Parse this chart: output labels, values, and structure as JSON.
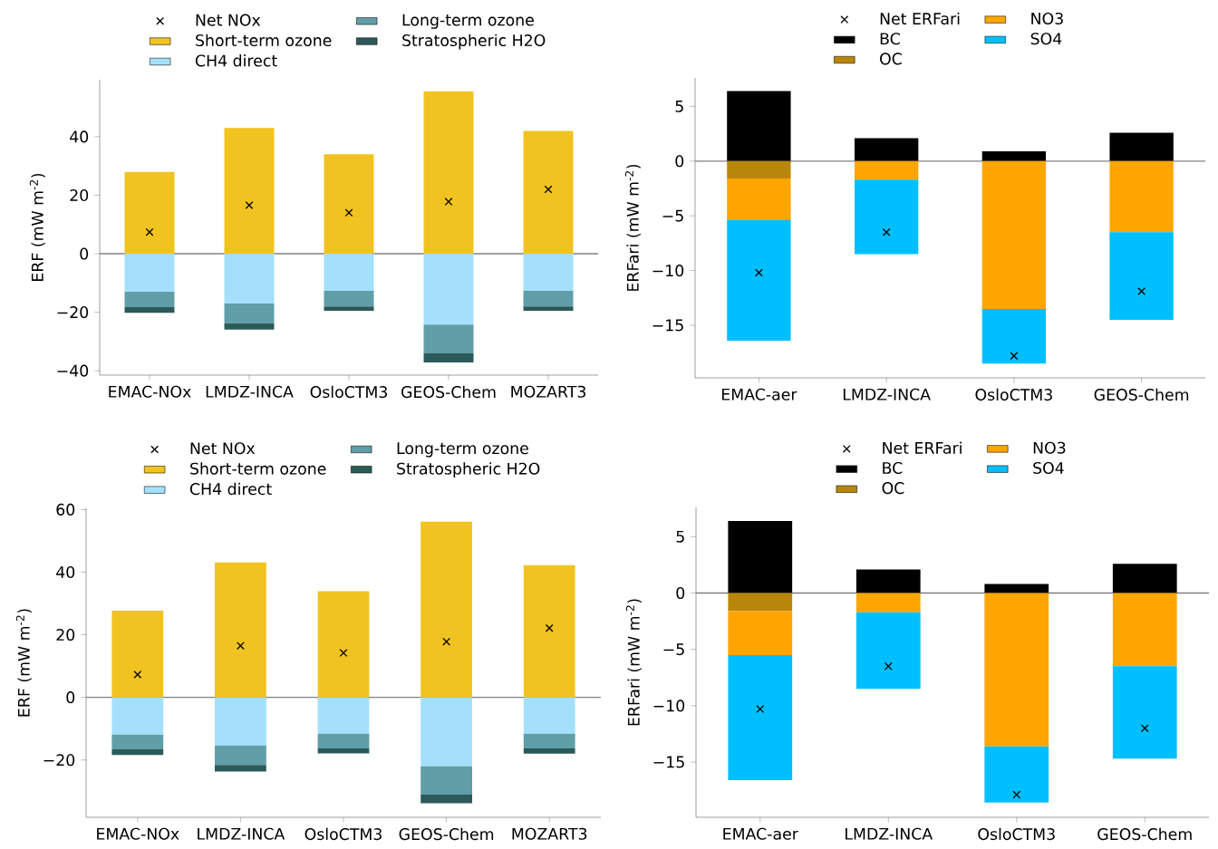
{
  "chart_data": [
    {
      "type": "bar",
      "stacked": true,
      "legend": "top",
      "ylabel": "ERF (mW m$^{-2}$)",
      "categories": [
        "EMAC-NOx",
        "LMDZ-INCA",
        "OsloCTM3",
        "GEOS-Chem",
        "MOZART3"
      ],
      "ylim": [
        -41.5,
        59.5
      ],
      "yticks": [
        {
          "value": -40,
          "label": "−40"
        },
        {
          "value": -20,
          "label": "−20"
        },
        0,
        20,
        40
      ],
      "ref_lines": [
        {
          "axis": "y",
          "value": 0,
          "color": "#808080"
        }
      ],
      "series": [
        {
          "name": "Net NOx",
          "type": "scatter",
          "marker": "cross",
          "color": "#000000",
          "x": [
            "EMAC-NOx",
            "LMDZ-INCA",
            "OsloCTM3",
            "GEOS-Chem",
            "MOZART3"
          ],
          "values": [
            7.4,
            16.6,
            14,
            17.8,
            22
          ]
        },
        {
          "name": "Short-term ozone",
          "color": "#f1c320",
          "values": [
            28,
            43,
            34,
            55.5,
            42
          ]
        },
        {
          "name": "CH4 direct",
          "color": "#a4e0fb",
          "values": [
            -13,
            -17,
            -12.7,
            -24.2,
            -12.7
          ]
        },
        {
          "name": "Long-term ozone",
          "color": "#609ea8",
          "values": [
            -5.3,
            -6.8,
            -5.3,
            -9.9,
            -5.3
          ]
        },
        {
          "name": "Stratospheric H2O",
          "color": "#2c5a58",
          "values": [
            -1.9,
            -2.1,
            -1.5,
            -3.1,
            -1.5
          ]
        }
      ]
    },
    {
      "type": "bar",
      "stacked": true,
      "legend": "top",
      "ylabel": "ERFari (mW m$^{-2}$)",
      "categories": [
        "EMAC-aer",
        "LMDZ-INCA",
        "OsloCTM3",
        "GEOS-Chem"
      ],
      "ylim": [
        -19.8,
        7.6
      ],
      "yticks": [
        {
          "value": -15,
          "label": "−15"
        },
        {
          "value": -10,
          "label": "−10"
        },
        {
          "value": -5,
          "label": "−5"
        },
        0,
        5
      ],
      "ref_lines": [
        {
          "axis": "y",
          "value": 0,
          "color": "#808080"
        }
      ],
      "series": [
        {
          "name": "Net ERFari",
          "type": "scatter",
          "marker": "cross",
          "color": "#000000",
          "x": [
            "EMAC-aer",
            "LMDZ-INCA",
            "OsloCTM3",
            "GEOS-Chem"
          ],
          "values": [
            -10.2,
            -6.5,
            -17.8,
            -11.9
          ]
        },
        {
          "name": "BC",
          "color": "#000000",
          "values": [
            6.4,
            2.1,
            0.9,
            2.6
          ]
        },
        {
          "name": "OC",
          "color": "#b8860b",
          "values": [
            -1.6,
            0,
            0,
            0
          ]
        },
        {
          "name": "NO3",
          "color": "#ffa500",
          "values": [
            -3.8,
            -1.7,
            -13.5,
            -6.5
          ]
        },
        {
          "name": "SO4",
          "color": "#00bfff",
          "values": [
            -11,
            -6.8,
            -5,
            -8
          ]
        }
      ]
    },
    {
      "type": "bar",
      "stacked": true,
      "legend": "top",
      "ylabel": "ERF (mW m$^{-2}$)",
      "categories": [
        "EMAC-NOx",
        "LMDZ-INCA",
        "OsloCTM3",
        "GEOS-Chem",
        "MOZART3"
      ],
      "ylim": [
        -38.3,
        60.4
      ],
      "yticks": [
        {
          "value": -20,
          "label": "−20"
        },
        0,
        20,
        40,
        60
      ],
      "ref_lines": [
        {
          "axis": "y",
          "value": 0,
          "color": "#808080"
        }
      ],
      "series": [
        {
          "name": "Net NOx",
          "type": "scatter",
          "marker": "cross",
          "color": "#000000",
          "x": [
            "EMAC-NOx",
            "LMDZ-INCA",
            "OsloCTM3",
            "GEOS-Chem",
            "MOZART3"
          ],
          "values": [
            7.3,
            16.5,
            14.2,
            17.8,
            22.1
          ]
        },
        {
          "name": "Short-term ozone",
          "color": "#f1c320",
          "values": [
            27.7,
            43.1,
            33.9,
            56.1,
            42.2
          ]
        },
        {
          "name": "CH4 direct",
          "color": "#a4e0fb",
          "values": [
            -11.9,
            -15.4,
            -11.6,
            -22,
            -11.6
          ]
        },
        {
          "name": "Long-term ozone",
          "color": "#609ea8",
          "values": [
            -4.7,
            -6.2,
            -4.7,
            -9.1,
            -4.7
          ]
        },
        {
          "name": "Stratospheric H2O",
          "color": "#2c5a58",
          "values": [
            -1.8,
            -2.1,
            -1.6,
            -2.7,
            -1.7
          ]
        }
      ]
    },
    {
      "type": "bar",
      "stacked": true,
      "legend": "top",
      "ylabel": "ERFari (mW m$^{-2}$)",
      "categories": [
        "EMAC-aer",
        "LMDZ-INCA",
        "OsloCTM3",
        "GEOS-Chem"
      ],
      "ylim": [
        -19.9,
        7.6
      ],
      "yticks": [
        {
          "value": -15,
          "label": "−15"
        },
        {
          "value": -10,
          "label": "−10"
        },
        {
          "value": -5,
          "label": "−5"
        },
        0,
        5
      ],
      "ref_lines": [
        {
          "axis": "y",
          "value": 0,
          "color": "#808080"
        }
      ],
      "series": [
        {
          "name": "Net ERFari",
          "type": "scatter",
          "marker": "cross",
          "color": "#000000",
          "x": [
            "EMAC-aer",
            "LMDZ-INCA",
            "OsloCTM3",
            "GEOS-Chem"
          ],
          "values": [
            -10.3,
            -6.5,
            -17.9,
            -12
          ]
        },
        {
          "name": "BC",
          "color": "#000000",
          "values": [
            6.4,
            2.1,
            0.8,
            2.6
          ]
        },
        {
          "name": "OC",
          "color": "#b8860b",
          "values": [
            -1.6,
            0,
            0,
            0
          ]
        },
        {
          "name": "NO3",
          "color": "#ffa500",
          "values": [
            -3.9,
            -1.7,
            -13.6,
            -6.5
          ]
        },
        {
          "name": "SO4",
          "color": "#00bfff",
          "values": [
            -11.1,
            -6.8,
            -5,
            -8.2
          ]
        }
      ]
    }
  ]
}
